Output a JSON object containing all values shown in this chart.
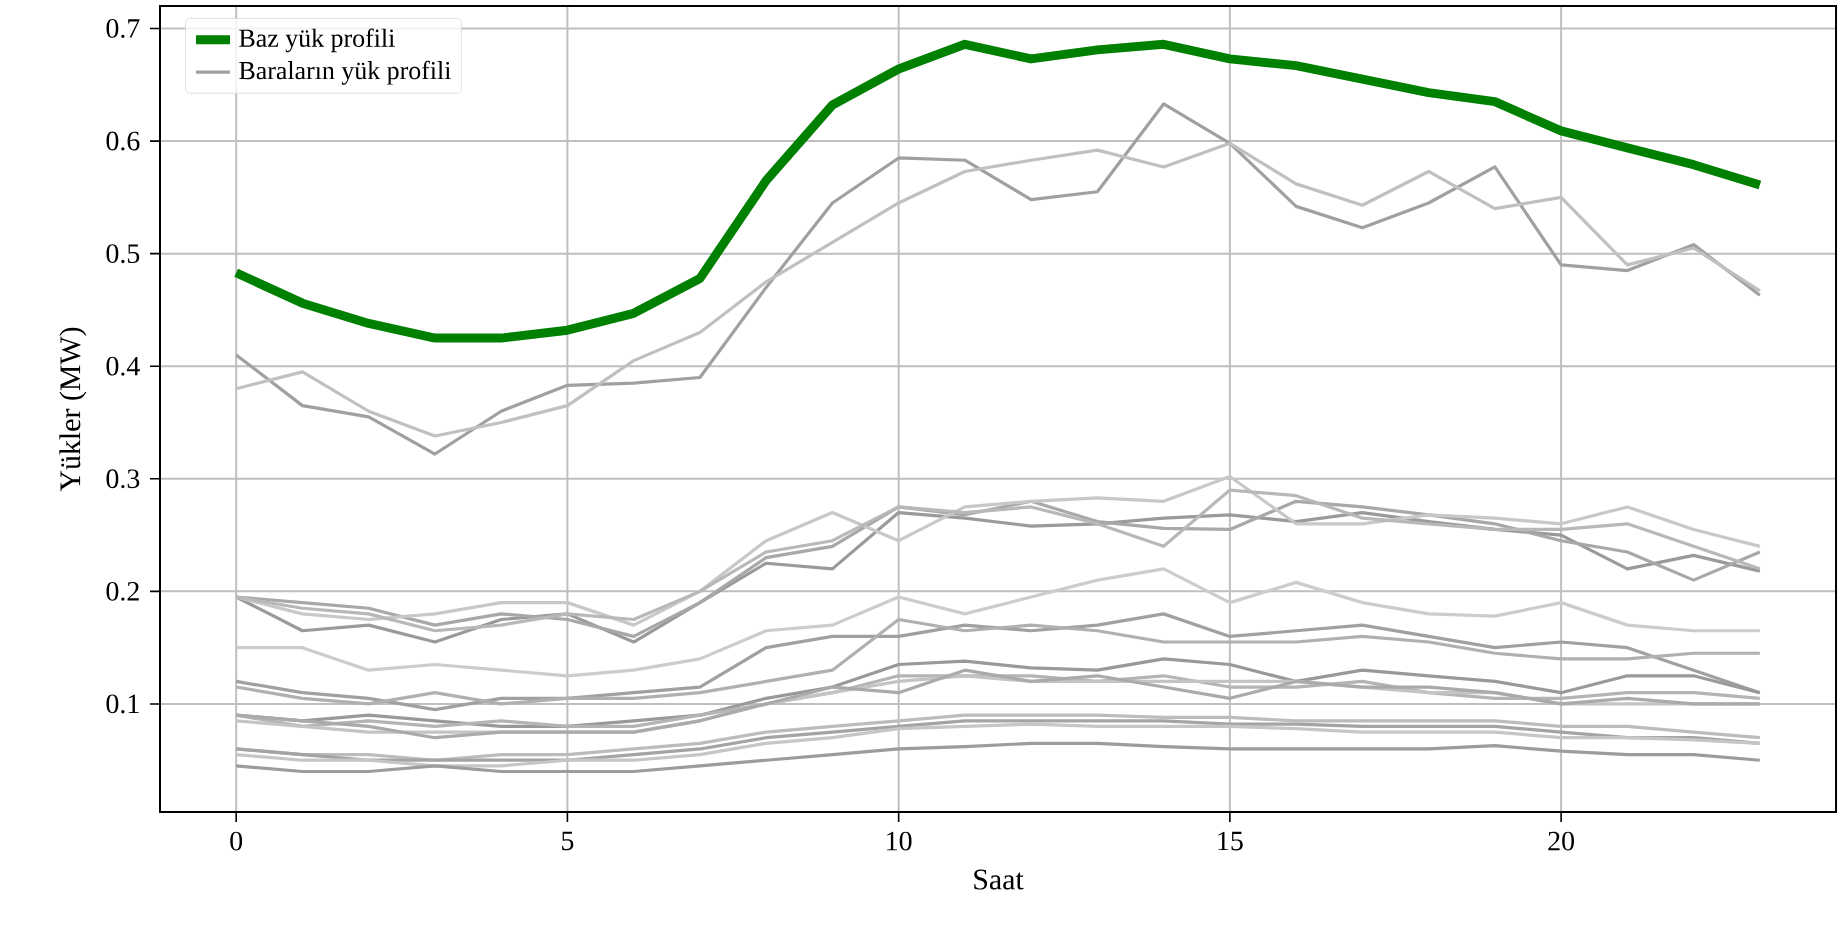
{
  "chart_data": {
    "type": "line",
    "xlabel": "Saat",
    "ylabel": "Yükler (MW)",
    "x": [
      0,
      1,
      2,
      3,
      4,
      5,
      6,
      7,
      8,
      9,
      10,
      11,
      12,
      13,
      14,
      15,
      16,
      17,
      18,
      19,
      20,
      21,
      22,
      23
    ],
    "xlim": [
      -1.15,
      24.15
    ],
    "ylim": [
      0.004,
      0.72
    ],
    "xticks": [
      0,
      5,
      10,
      15,
      20
    ],
    "yticks": [
      0.1,
      0.2,
      0.3,
      0.4,
      0.5,
      0.6,
      0.7
    ],
    "grid": true,
    "legend": "top left",
    "marker": "none",
    "line_style": "solid",
    "series": [
      {
        "name": "Baz yük profili",
        "color": "#008000",
        "values": [
          0.483,
          0.456,
          0.438,
          0.425,
          0.425,
          0.432,
          0.447,
          0.478,
          0.565,
          0.632,
          0.664,
          0.686,
          0.673,
          0.681,
          0.686,
          0.673,
          0.667,
          0.655,
          0.643,
          0.635,
          0.609,
          0.594,
          0.579,
          0.561
        ]
      },
      {
        "name": "Baraların yük profili",
        "color": "#a0a0a0",
        "values": [
          0.41,
          0.365,
          0.355,
          0.322,
          0.36,
          0.383,
          0.385,
          0.39,
          0.47,
          0.545,
          0.585,
          0.583,
          0.548,
          0.555,
          0.633,
          0.598,
          0.542,
          0.523,
          0.545,
          0.577,
          0.49,
          0.485,
          0.508,
          0.463
        ]
      },
      {
        "color": "#c0c0c0",
        "values": [
          0.38,
          0.395,
          0.36,
          0.338,
          0.35,
          0.365,
          0.405,
          0.43,
          0.475,
          0.51,
          0.545,
          0.573,
          0.583,
          0.592,
          0.577,
          0.598,
          0.562,
          0.543,
          0.573,
          0.54,
          0.55,
          0.49,
          0.505,
          0.467
        ]
      },
      {
        "color": "#9a9a9a",
        "values": [
          0.195,
          0.165,
          0.17,
          0.155,
          0.175,
          0.18,
          0.155,
          0.19,
          0.225,
          0.22,
          0.27,
          0.265,
          0.258,
          0.26,
          0.265,
          0.268,
          0.262,
          0.27,
          0.262,
          0.255,
          0.25,
          0.22,
          0.232,
          0.218
        ]
      },
      {
        "color": "#a8a8a8",
        "values": [
          0.195,
          0.19,
          0.185,
          0.17,
          0.18,
          0.175,
          0.16,
          0.19,
          0.23,
          0.24,
          0.275,
          0.268,
          0.28,
          0.262,
          0.256,
          0.255,
          0.28,
          0.275,
          0.268,
          0.26,
          0.245,
          0.235,
          0.21,
          0.235
        ]
      },
      {
        "color": "#c8c8c8",
        "values": [
          0.195,
          0.18,
          0.175,
          0.18,
          0.19,
          0.19,
          0.17,
          0.2,
          0.245,
          0.27,
          0.245,
          0.275,
          0.28,
          0.283,
          0.28,
          0.302,
          0.26,
          0.26,
          0.268,
          0.265,
          0.26,
          0.275,
          0.255,
          0.24
        ]
      },
      {
        "color": "#b8b8b8",
        "values": [
          0.195,
          0.185,
          0.18,
          0.165,
          0.17,
          0.18,
          0.175,
          0.2,
          0.235,
          0.245,
          0.275,
          0.27,
          0.275,
          0.26,
          0.24,
          0.29,
          0.285,
          0.265,
          0.26,
          0.255,
          0.255,
          0.26,
          0.24,
          0.22
        ]
      },
      {
        "color": "#cccccc",
        "values": [
          0.15,
          0.15,
          0.13,
          0.135,
          0.13,
          0.125,
          0.13,
          0.14,
          0.165,
          0.17,
          0.195,
          0.18,
          0.195,
          0.21,
          0.22,
          0.19,
          0.208,
          0.19,
          0.18,
          0.178,
          0.19,
          0.17,
          0.165,
          0.165
        ]
      },
      {
        "color": "#a0a0a0",
        "values": [
          0.12,
          0.11,
          0.105,
          0.095,
          0.105,
          0.105,
          0.11,
          0.115,
          0.15,
          0.16,
          0.16,
          0.17,
          0.165,
          0.17,
          0.18,
          0.16,
          0.165,
          0.17,
          0.16,
          0.15,
          0.155,
          0.15,
          0.13,
          0.11
        ]
      },
      {
        "color": "#b0b0b0",
        "values": [
          0.115,
          0.105,
          0.1,
          0.11,
          0.1,
          0.105,
          0.105,
          0.11,
          0.12,
          0.13,
          0.175,
          0.165,
          0.17,
          0.165,
          0.155,
          0.155,
          0.155,
          0.16,
          0.155,
          0.145,
          0.14,
          0.14,
          0.145,
          0.145
        ]
      },
      {
        "color": "#999999",
        "values": [
          0.09,
          0.085,
          0.09,
          0.085,
          0.08,
          0.08,
          0.085,
          0.09,
          0.105,
          0.115,
          0.135,
          0.138,
          0.132,
          0.13,
          0.14,
          0.135,
          0.12,
          0.13,
          0.125,
          0.12,
          0.11,
          0.125,
          0.125,
          0.11
        ]
      },
      {
        "color": "#b4b4b4",
        "values": [
          0.09,
          0.08,
          0.085,
          0.08,
          0.085,
          0.08,
          0.08,
          0.09,
          0.1,
          0.11,
          0.125,
          0.125,
          0.125,
          0.12,
          0.125,
          0.115,
          0.115,
          0.12,
          0.11,
          0.105,
          0.105,
          0.11,
          0.11,
          0.105
        ]
      },
      {
        "color": "#c4c4c4",
        "values": [
          0.085,
          0.08,
          0.075,
          0.075,
          0.075,
          0.075,
          0.075,
          0.085,
          0.1,
          0.11,
          0.12,
          0.125,
          0.12,
          0.12,
          0.12,
          0.12,
          0.12,
          0.115,
          0.11,
          0.11,
          0.1,
          0.1,
          0.1,
          0.1
        ]
      },
      {
        "color": "#aaaaaa",
        "values": [
          0.09,
          0.085,
          0.08,
          0.07,
          0.075,
          0.075,
          0.075,
          0.085,
          0.1,
          0.115,
          0.11,
          0.13,
          0.12,
          0.125,
          0.115,
          0.105,
          0.12,
          0.115,
          0.115,
          0.11,
          0.1,
          0.105,
          0.1,
          0.1
        ]
      },
      {
        "color": "#bcbcbc",
        "values": [
          0.06,
          0.055,
          0.055,
          0.05,
          0.055,
          0.055,
          0.06,
          0.065,
          0.075,
          0.08,
          0.085,
          0.09,
          0.09,
          0.09,
          0.088,
          0.088,
          0.085,
          0.085,
          0.085,
          0.085,
          0.08,
          0.08,
          0.075,
          0.07
        ]
      },
      {
        "color": "#a4a4a4",
        "values": [
          0.06,
          0.055,
          0.05,
          0.05,
          0.05,
          0.05,
          0.055,
          0.06,
          0.07,
          0.075,
          0.08,
          0.085,
          0.085,
          0.085,
          0.085,
          0.082,
          0.082,
          0.08,
          0.08,
          0.08,
          0.075,
          0.07,
          0.07,
          0.065
        ]
      },
      {
        "color": "#c6c6c6",
        "values": [
          0.055,
          0.05,
          0.05,
          0.045,
          0.045,
          0.05,
          0.05,
          0.055,
          0.065,
          0.07,
          0.078,
          0.08,
          0.082,
          0.08,
          0.08,
          0.08,
          0.078,
          0.075,
          0.075,
          0.075,
          0.07,
          0.07,
          0.068,
          0.065
        ]
      },
      {
        "color": "#9c9c9c",
        "values": [
          0.045,
          0.04,
          0.04,
          0.045,
          0.04,
          0.04,
          0.04,
          0.045,
          0.05,
          0.055,
          0.06,
          0.062,
          0.065,
          0.065,
          0.062,
          0.06,
          0.06,
          0.06,
          0.06,
          0.063,
          0.058,
          0.055,
          0.055,
          0.05
        ]
      }
    ]
  }
}
